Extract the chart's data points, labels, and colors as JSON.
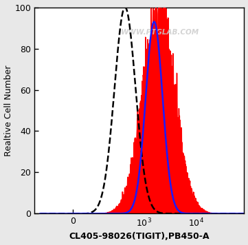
{
  "xlabel": "CL405-98026(TIGIT),PB450-A",
  "ylabel": "Realtive Cell Number",
  "watermark": "WWW.PTGLAB.COM",
  "ylim": [
    0,
    100
  ],
  "yticks": [
    0,
    20,
    40,
    60,
    80,
    100
  ],
  "background_color": "#e8e8e8",
  "plot_bg": "#ffffff",
  "dashed_color": "#000000",
  "blue_color": "#1a1aff",
  "red_color": "#ff0000",
  "mu_dashed_log": 2.65,
  "sigma_dashed": 0.2,
  "amp_dashed": 100,
  "mu_blue_log": 3.2,
  "sigma_blue": 0.16,
  "amp_blue": 93,
  "mu_red_log": 3.28,
  "sigma_red": 0.3,
  "amp_red": 95,
  "noise_scale": 8.0,
  "seed": 42
}
